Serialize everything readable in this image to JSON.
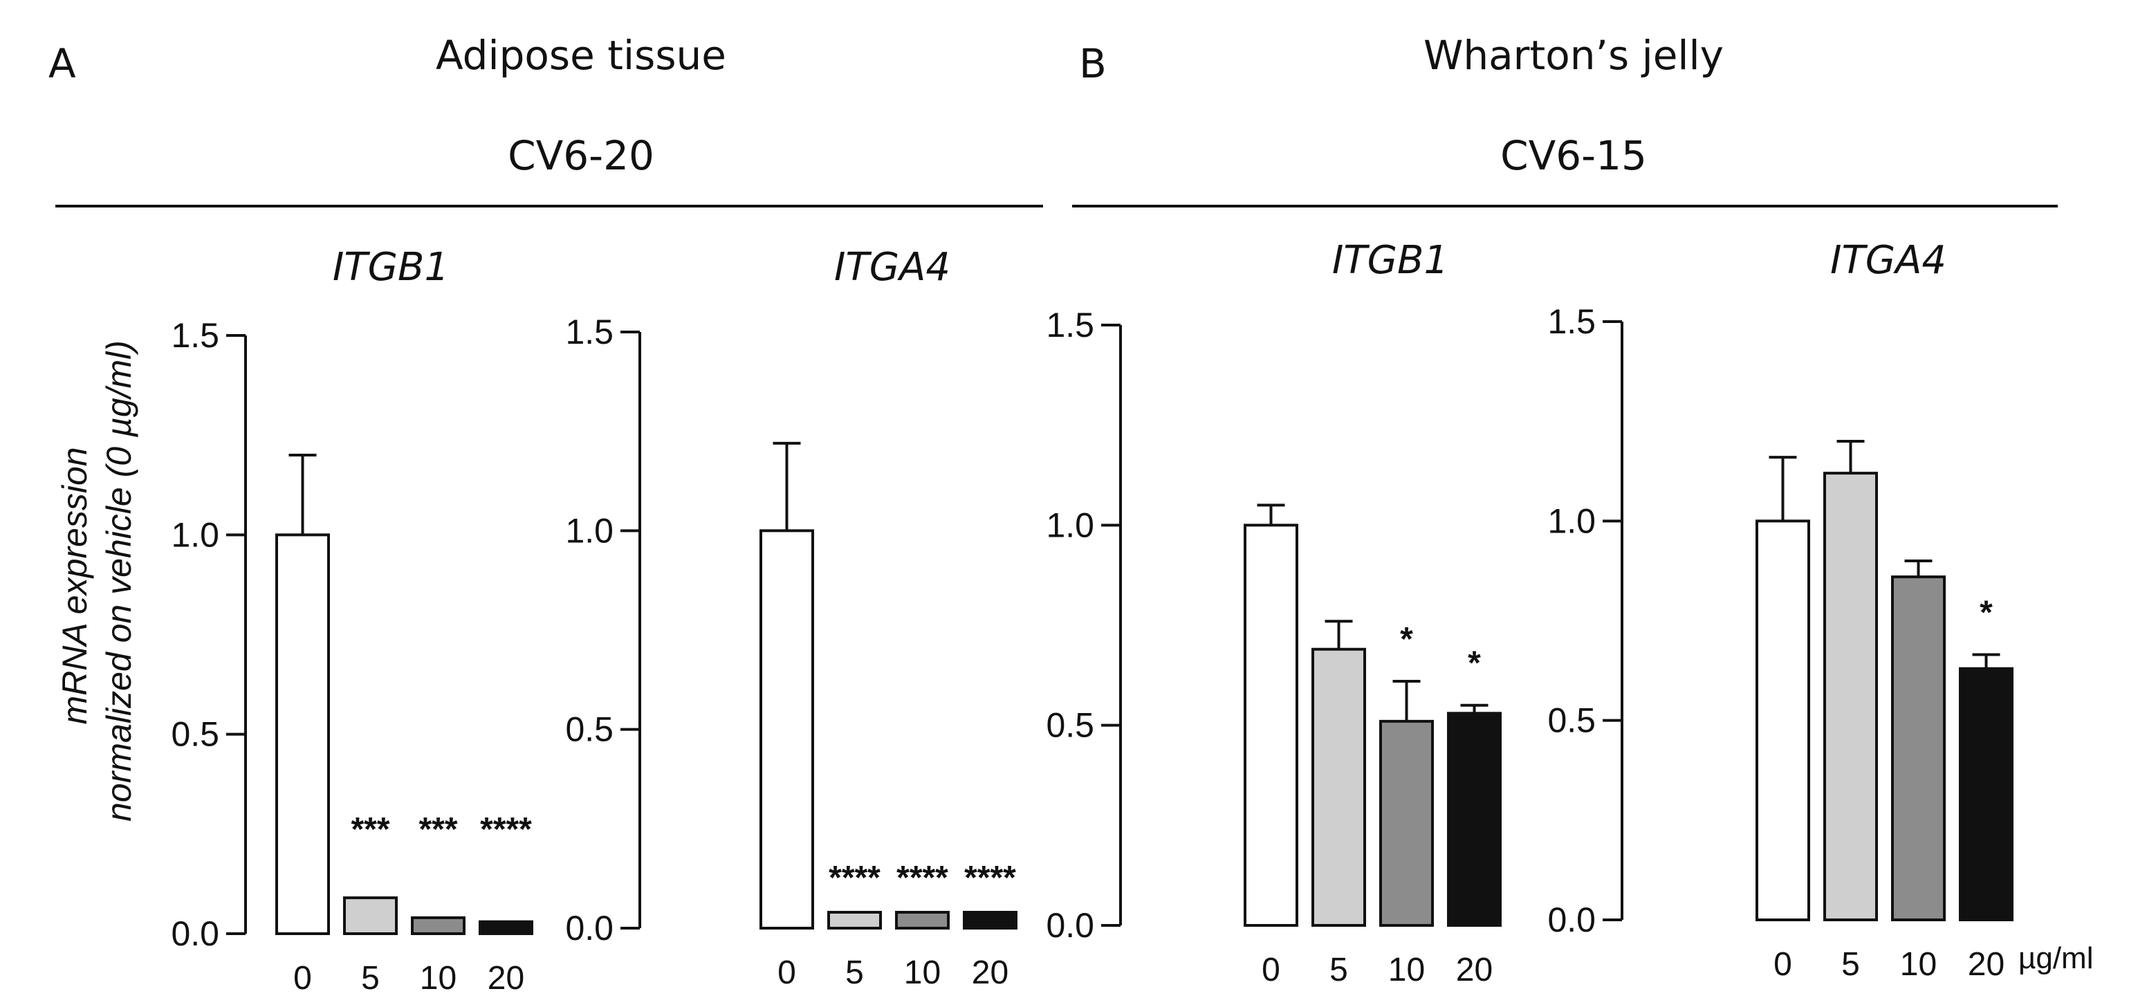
{
  "panels": [
    {
      "letter": "A",
      "title": "Adipose tissue",
      "condition": "CV6-20",
      "charts": [
        {
          "type": "bar",
          "gene": "ITGB1",
          "categories": [
            "0",
            "5",
            "10",
            "20"
          ],
          "values": [
            1.0,
            0.09,
            0.04,
            0.03
          ],
          "errors": [
            0.2,
            0.005,
            0.004,
            0.004
          ],
          "significance": [
            "",
            "***",
            "***",
            "****"
          ],
          "colors": [
            "#ffffff",
            "#cfcfcf",
            "#8c8c8c",
            "#111111"
          ],
          "yticks": [
            "0.0",
            "0.5",
            "1.0",
            "1.5"
          ],
          "ylim": [
            0,
            1.5
          ]
        },
        {
          "type": "bar",
          "gene": "ITGA4",
          "categories": [
            "0",
            "5",
            "10",
            "20"
          ],
          "values": [
            1.0,
            0.04,
            0.04,
            0.04
          ],
          "errors": [
            0.22,
            0.006,
            0.006,
            0.006
          ],
          "significance": [
            "",
            "****",
            "****",
            "****"
          ],
          "colors": [
            "#ffffff",
            "#cfcfcf",
            "#8c8c8c",
            "#111111"
          ],
          "yticks": [
            "0.0",
            "0.5",
            "1.0",
            "1.5"
          ],
          "ylim": [
            0,
            1.5
          ]
        }
      ]
    },
    {
      "letter": "B",
      "title": "Wharton’s jelly",
      "condition": "CV6-15",
      "charts": [
        {
          "type": "bar",
          "gene": "ITGB1",
          "categories": [
            "0",
            "5",
            "10",
            "20"
          ],
          "values": [
            1.0,
            0.69,
            0.51,
            0.53
          ],
          "errors": [
            0.05,
            0.07,
            0.1,
            0.02
          ],
          "significance": [
            "",
            "",
            "*",
            "*"
          ],
          "colors": [
            "#ffffff",
            "#cfcfcf",
            "#8c8c8c",
            "#111111"
          ],
          "yticks": [
            "0.0",
            "0.5",
            "1.0",
            "1.5"
          ],
          "ylim": [
            0,
            1.5
          ]
        },
        {
          "type": "bar",
          "gene": "ITGA4",
          "categories": [
            "0",
            "5",
            "10",
            "20"
          ],
          "values": [
            1.0,
            1.12,
            0.86,
            0.63
          ],
          "errors": [
            0.16,
            0.08,
            0.04,
            0.035
          ],
          "significance": [
            "",
            "",
            "",
            "*"
          ],
          "colors": [
            "#ffffff",
            "#cfcfcf",
            "#8c8c8c",
            "#111111"
          ],
          "yticks": [
            "0.0",
            "0.5",
            "1.0",
            "1.5"
          ],
          "ylim": [
            0,
            1.5
          ]
        }
      ]
    }
  ],
  "y_axis_label_line1": "mRNA expression",
  "y_axis_label_line2": "normalized on vehicle (0 µg/ml)",
  "x_unit": "µg/ml"
}
